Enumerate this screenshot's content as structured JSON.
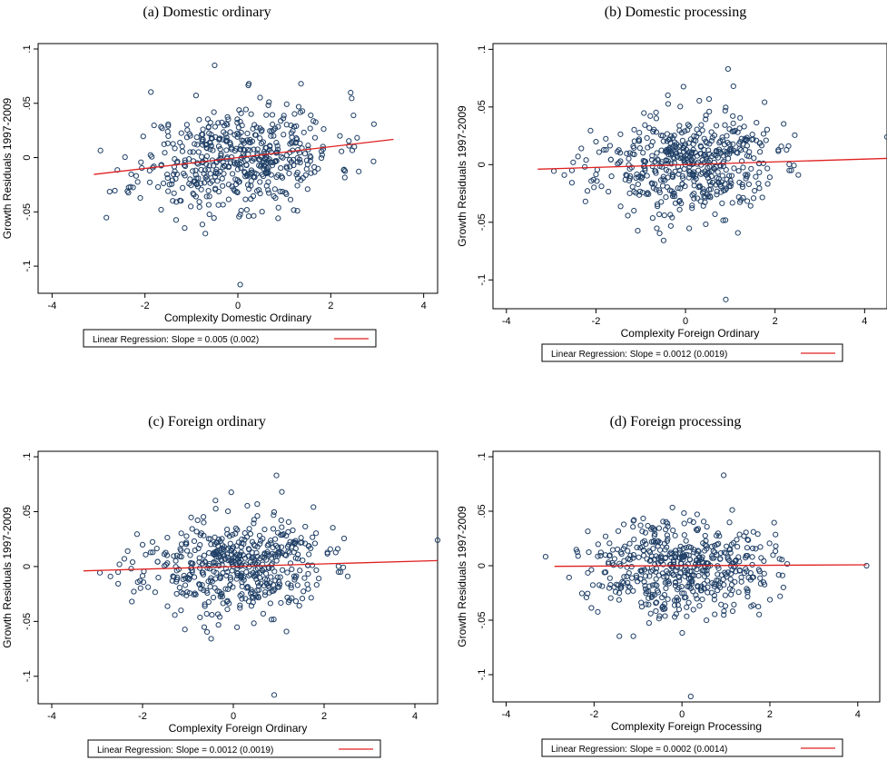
{
  "chart_data": [
    {
      "type": "scatter",
      "title": "(a) Domestic ordinary",
      "xlabel": "Complexity Domestic Ordinary",
      "ylabel": "Growth Residuals 1997-2009",
      "xlim": [
        -4.3,
        4.3
      ],
      "ylim": [
        -0.125,
        0.105
      ],
      "xticks": [
        -4,
        -2,
        0,
        2,
        4
      ],
      "yticks": [
        -0.1,
        -0.05,
        0,
        0.05,
        0.1
      ],
      "ytick_labels": [
        "-.1",
        "-.05",
        "0",
        ".05",
        ".1"
      ],
      "n_points": 520,
      "x_mean": 0,
      "x_sd": 1.05,
      "y_sd": 0.024,
      "seed": 11,
      "outliers": [
        {
          "x": 0.05,
          "y": -0.117
        },
        {
          "x": -0.5,
          "y": 0.085
        }
      ],
      "fit_line": {
        "x0": -3.1,
        "x1": 3.35,
        "slope": 0.005,
        "intercept": 0.0
      },
      "legend": "Linear Regression: Slope = 0.005 (0.002)",
      "grid": false,
      "legend_position": "bottom"
    },
    {
      "type": "scatter",
      "title": "(b) Domestic processing",
      "xlabel": "Complexity Foreign Ordinary",
      "ylabel": "Growth Residuals 1997-2009",
      "xlim": [
        -4.3,
        4.5
      ],
      "ylim": [
        -0.125,
        0.105
      ],
      "xticks": [
        -4,
        -2,
        0,
        2,
        4
      ],
      "yticks": [
        -0.1,
        -0.05,
        0,
        0.05,
        0.1
      ],
      "ytick_labels": [
        "-.1",
        "-.05",
        "0",
        ".05",
        ".1"
      ],
      "n_points": 520,
      "x_mean": 0,
      "x_sd": 1.0,
      "y_sd": 0.022,
      "seed": 23,
      "outliers": [
        {
          "x": 0.9,
          "y": -0.117
        },
        {
          "x": 0.95,
          "y": 0.083
        },
        {
          "x": 4.5,
          "y": 0.024
        }
      ],
      "fit_line": {
        "x0": -3.3,
        "x1": 4.5,
        "slope": 0.0012,
        "intercept": 0.0
      },
      "legend": "Linear Regression: Slope = 0.0012 (0.0019)",
      "grid": false,
      "legend_position": "bottom"
    },
    {
      "type": "scatter",
      "title": "(c) Foreign ordinary",
      "xlabel": "Complexity Foreign Ordinary",
      "ylabel": "Growth Residuals 1997-2009",
      "xlim": [
        -4.3,
        4.5
      ],
      "ylim": [
        -0.125,
        0.105
      ],
      "xticks": [
        -4,
        -2,
        0,
        2,
        4
      ],
      "yticks": [
        -0.1,
        -0.05,
        0,
        0.05,
        0.1
      ],
      "ytick_labels": [
        "-.1",
        "-.05",
        "0",
        ".05",
        ".1"
      ],
      "n_points": 520,
      "x_mean": 0,
      "x_sd": 1.0,
      "y_sd": 0.022,
      "seed": 23,
      "outliers": [
        {
          "x": 0.9,
          "y": -0.117
        },
        {
          "x": 0.95,
          "y": 0.083
        },
        {
          "x": 4.5,
          "y": 0.024
        }
      ],
      "fit_line": {
        "x0": -3.3,
        "x1": 4.5,
        "slope": 0.0012,
        "intercept": 0.0
      },
      "legend": "Linear Regression: Slope = 0.0012 (0.0019)",
      "grid": false,
      "legend_position": "bottom"
    },
    {
      "type": "scatter",
      "title": "(d) Foreign processing",
      "xlabel": "Complexity Foreign Processing",
      "ylabel": "Growth Residuals 1997-2009",
      "xlim": [
        -4.3,
        4.5
      ],
      "ylim": [
        -0.125,
        0.105
      ],
      "xticks": [
        -4,
        -2,
        0,
        2,
        4
      ],
      "yticks": [
        -0.1,
        -0.05,
        0,
        0.05,
        0.1
      ],
      "ytick_labels": [
        "-.1",
        "-.05",
        "0",
        ".05",
        ".1"
      ],
      "n_points": 520,
      "x_mean": 0,
      "x_sd": 1.0,
      "y_sd": 0.022,
      "seed": 37,
      "outliers": [
        {
          "x": 0.2,
          "y": -0.12
        },
        {
          "x": 0.95,
          "y": 0.083
        },
        {
          "x": 4.2,
          "y": 0.0
        }
      ],
      "fit_line": {
        "x0": -2.9,
        "x1": 4.2,
        "slope": 0.0002,
        "intercept": 0.0
      },
      "legend": "Linear Regression: Slope = 0.0002 (0.0014)",
      "grid": false,
      "legend_position": "bottom"
    }
  ],
  "colors": {
    "marker": "#1f3f66",
    "fit_line": "#e02020",
    "frame": "#000000"
  }
}
